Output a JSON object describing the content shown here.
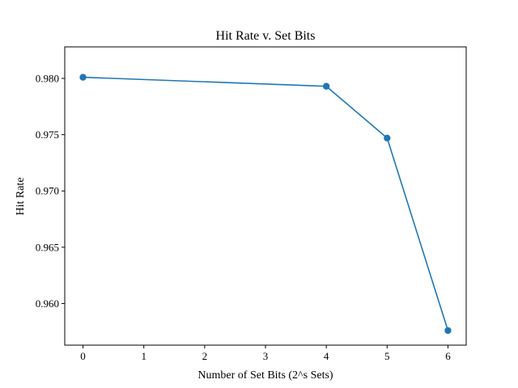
{
  "chart_data": {
    "type": "line",
    "title": "Hit Rate v. Set Bits",
    "xlabel": "Number of Set Bits (2^s Sets)",
    "ylabel": "Hit Rate",
    "xlim": [
      -0.3,
      6.3
    ],
    "ylim": [
      0.9563,
      0.9828
    ],
    "xticks": [
      0,
      1,
      2,
      3,
      4,
      5,
      6
    ],
    "yticks": [
      0.96,
      0.965,
      0.97,
      0.975,
      0.98
    ],
    "ytick_labels": [
      "0.960",
      "0.965",
      "0.970",
      "0.975",
      "0.980"
    ],
    "grid": false,
    "series": [
      {
        "color": "#1f77b4",
        "marker": "circle",
        "x": [
          0,
          4,
          5,
          6
        ],
        "y": [
          0.9801,
          0.9793,
          0.9747,
          0.9576
        ]
      }
    ]
  }
}
